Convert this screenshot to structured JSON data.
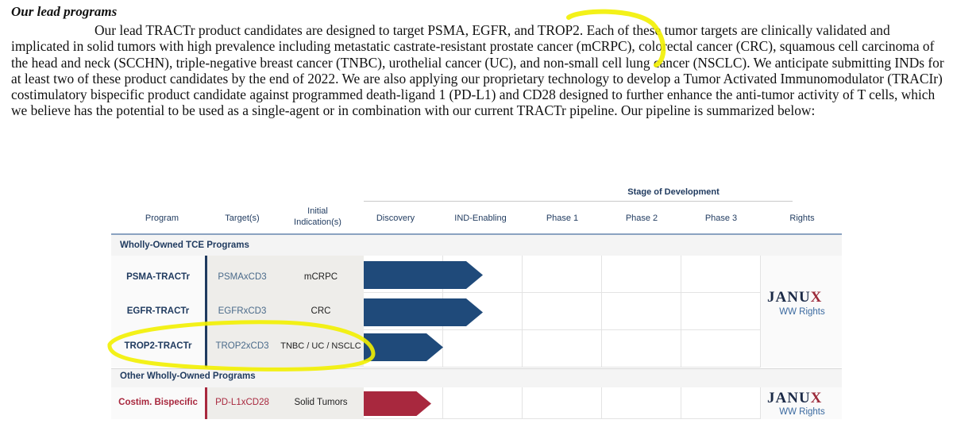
{
  "document": {
    "section_title": "Our lead programs",
    "paragraph": "Our lead TRACTr product candidates are designed to target PSMA, EGFR, and TROP2. Each of these tumor targets are clinically validated and implicated in solid tumors with high prevalence including metastatic castrate-resistant prostate cancer (mCRPC), colorectal cancer (CRC), squamous cell carcinoma of the head and neck (SCCHN), triple-negative breast cancer (TNBC), urothelial cancer (UC), and non-small cell lung cancer (NSCLC). We anticipate submitting INDs for at least two of these product candidates by the end of 2022. We are also applying our proprietary technology to develop a Tumor Activated Immunomodulator (TRACIr) costimulatory bispecific product candidate against programmed death-ligand 1 (PD-L1) and CD28 designed to further enhance the anti-tumor activity of T cells, which we believe has the potential to be used as a single-agent or in combination with our current TRACTr pipeline. Our pipeline is summarized below:"
  },
  "pipeline": {
    "stage_header": "Stage of Development",
    "columns": {
      "program": "Program",
      "targets": "Target(s)",
      "indication_line1": "Initial",
      "indication_line2": "Indication(s)",
      "discovery": "Discovery",
      "ind_enabling": "IND-Enabling",
      "phase1": "Phase 1",
      "phase2": "Phase 2",
      "phase3": "Phase 3",
      "rights": "Rights"
    },
    "groups": [
      {
        "label": "Wholly-Owned TCE Programs"
      },
      {
        "label": "Other Wholly-Owned Programs"
      }
    ],
    "rows": [
      {
        "program": "PSMA-TRACTr",
        "target": "PSMAxCD3",
        "indication": "mCRPC",
        "stage_progress": 1.5,
        "color": "#1f4a7a"
      },
      {
        "program": "EGFR-TRACTr",
        "target": "EGFRxCD3",
        "indication": "CRC",
        "stage_progress": 1.5,
        "color": "#1f4a7a"
      },
      {
        "program": "TROP2-TRACTr",
        "target": "TROP2xCD3",
        "indication": "TNBC / UC / NSCLC",
        "stage_progress": 1.0,
        "color": "#1f4a7a"
      },
      {
        "program": "Costim. Bispecific",
        "target": "PD-L1xCD28",
        "indication": "Solid Tumors",
        "stage_progress": 0.85,
        "color": "#a8283e"
      }
    ],
    "rights": [
      {
        "brand": "JANU",
        "brand_x": "X",
        "label": "WW Rights"
      },
      {
        "brand": "JANU",
        "brand_x": "X",
        "label": "WW Rights"
      }
    ],
    "colors": {
      "tce_arrow": "#1f4a7a",
      "costim_arrow": "#a8283e",
      "costim_text": "#a8283e",
      "highlight": "#f2f000"
    }
  }
}
